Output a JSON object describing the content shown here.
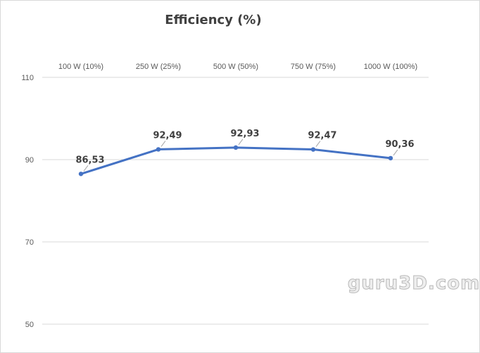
{
  "watermark": "guru3D.com",
  "colors": {
    "series": "#4472c4",
    "grid": "#d9d9d9",
    "text": "#404040",
    "tick_text": "#595959"
  },
  "chart_data": {
    "type": "line",
    "title": "Efficiency (%)",
    "xlabel": "",
    "ylabel": "",
    "categories": [
      "100 W (10%)",
      "250 W (25%)",
      "500 W (50%)",
      "750 W (75%)",
      "1000 W (100%)"
    ],
    "series": [
      {
        "values": [
          86.53,
          92.49,
          92.93,
          92.47,
          90.36
        ],
        "labels": [
          "86,53",
          "92,49",
          "92,93",
          "92,47",
          "90,36"
        ]
      }
    ],
    "ylim": [
      50,
      110
    ],
    "yticks": [
      {
        "value": 50,
        "label": "50"
      },
      {
        "value": 70,
        "label": "70"
      },
      {
        "value": 90,
        "label": "90"
      },
      {
        "value": 110,
        "label": "110"
      }
    ],
    "x_axis_position": "top",
    "grid": true,
    "legend": "none"
  }
}
